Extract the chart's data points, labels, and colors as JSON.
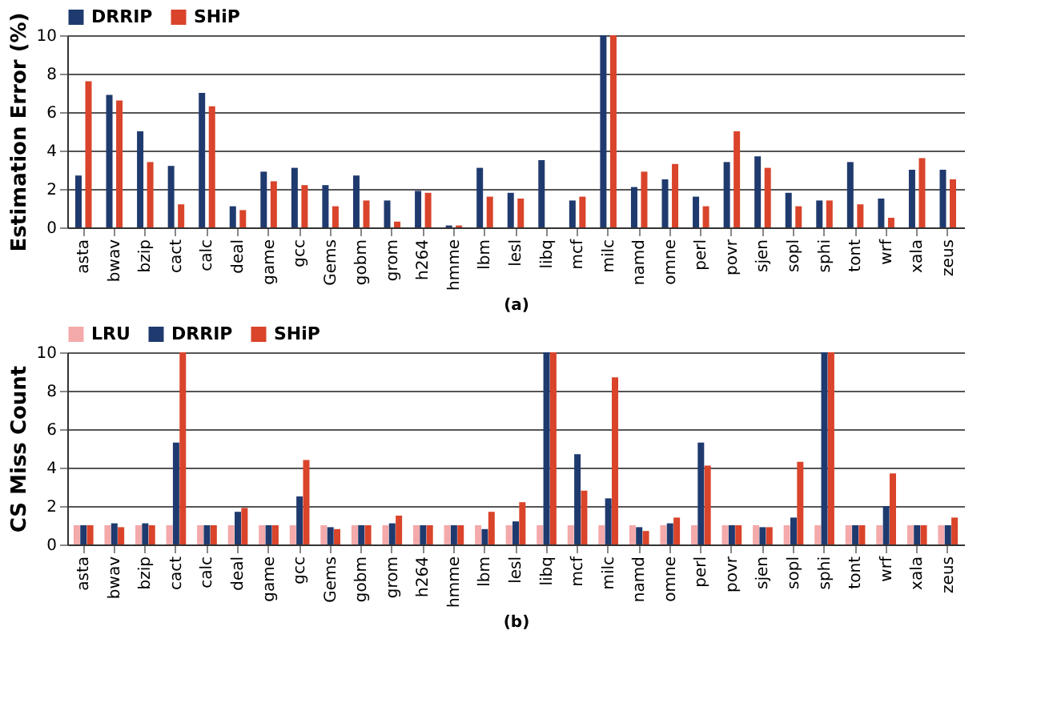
{
  "chart_data": [
    {
      "type": "bar",
      "ylabel": "Estimation Error (%)",
      "annotations": [
        "(a)"
      ],
      "categories": [
        "asta",
        "bwav",
        "bzip",
        "cact",
        "calc",
        "deal",
        "game",
        "gcc",
        "Gems",
        "gobm",
        "grom",
        "h264",
        "hmme",
        "lbm",
        "lesl",
        "libq",
        "mcf",
        "milc",
        "namd",
        "omne",
        "perl",
        "povr",
        "sjen",
        "sopl",
        "sphi",
        "tont",
        "wrf",
        "xala",
        "zeus"
      ],
      "series": [
        {
          "name": "DRRIP",
          "color": "#1f3a6e",
          "values": [
            2.7,
            6.9,
            5.0,
            3.2,
            7.0,
            1.1,
            2.9,
            3.1,
            2.2,
            2.7,
            1.4,
            1.9,
            0.1,
            3.1,
            1.8,
            3.5,
            1.4,
            10,
            2.1,
            2.5,
            1.6,
            3.4,
            3.7,
            1.8,
            1.4,
            3.4,
            1.5,
            3.0,
            3.0
          ]
        },
        {
          "name": "SHiP",
          "color": "#d9442b",
          "values": [
            7.6,
            6.6,
            3.4,
            1.2,
            6.3,
            0.9,
            2.4,
            2.2,
            1.1,
            1.4,
            0.3,
            1.8,
            0.1,
            1.6,
            1.5,
            0,
            1.6,
            10,
            2.9,
            3.3,
            1.1,
            5.0,
            3.1,
            1.1,
            1.4,
            1.2,
            0.5,
            3.6,
            2.5
          ]
        }
      ],
      "ylim": [
        0,
        10
      ],
      "yticks": [
        0,
        2,
        4,
        6,
        8,
        10
      ],
      "grid": "y",
      "legend": "top"
    },
    {
      "type": "bar",
      "ylabel": "CS Miss Count",
      "annotations": [
        "(b)"
      ],
      "categories": [
        "asta",
        "bwav",
        "bzip",
        "cact",
        "calc",
        "deal",
        "game",
        "gcc",
        "Gems",
        "gobm",
        "grom",
        "h264",
        "hmme",
        "lbm",
        "lesl",
        "libq",
        "mcf",
        "milc",
        "namd",
        "omne",
        "perl",
        "povr",
        "sjen",
        "sopl",
        "sphi",
        "tont",
        "wrf",
        "xala",
        "zeus"
      ],
      "series": [
        {
          "name": "LRU",
          "color": "#f4a9aa",
          "values": [
            1,
            1,
            1,
            1,
            1,
            1,
            1,
            1,
            1,
            1,
            1,
            1,
            1,
            1,
            1,
            1,
            1,
            1,
            1,
            1,
            1,
            1,
            1,
            1,
            1,
            1,
            1,
            1,
            1
          ]
        },
        {
          "name": "DRRIP",
          "color": "#1f3a6e",
          "values": [
            1,
            1.1,
            1.1,
            5.3,
            1,
            1.7,
            1,
            2.5,
            0.9,
            1,
            1.1,
            1,
            1,
            0.8,
            1.2,
            10,
            4.7,
            2.4,
            0.9,
            1.1,
            5.3,
            1,
            0.9,
            1.4,
            10,
            1,
            2.0,
            1,
            1
          ]
        },
        {
          "name": "SHiP",
          "color": "#d9442b",
          "values": [
            1,
            0.9,
            1.0,
            10,
            1,
            1.9,
            1,
            4.4,
            0.8,
            1,
            1.5,
            1,
            1,
            1.7,
            2.2,
            10,
            2.8,
            8.7,
            0.7,
            1.4,
            4.1,
            1,
            0.9,
            4.3,
            10,
            1,
            3.7,
            1,
            1.4
          ]
        }
      ],
      "ylim": [
        0,
        10
      ],
      "yticks": [
        0,
        2,
        4,
        6,
        8,
        10
      ],
      "grid": "y",
      "legend": "top"
    }
  ]
}
